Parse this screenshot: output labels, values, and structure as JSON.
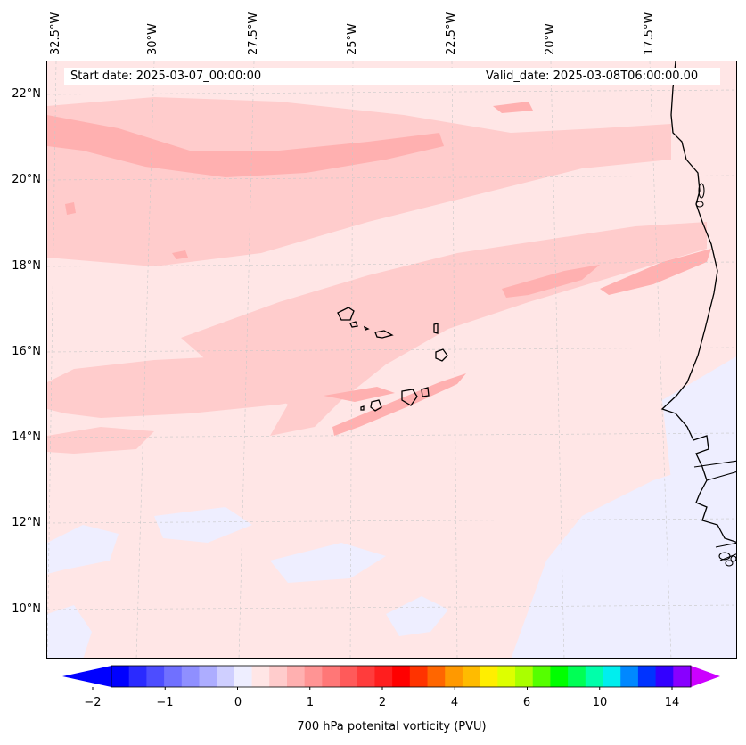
{
  "map": {
    "start_date": "Start date: 2025-03-07_00:00:00",
    "valid_date": "Valid_date: 2025-03-08T06:00:00.00",
    "longitude_labels": [
      "32.5°W",
      "30°W",
      "27.5°W",
      "25°W",
      "22.5°W",
      "20°W",
      "17.5°W"
    ],
    "latitude_labels": [
      "22°N",
      "20°N",
      "18°N",
      "16°N",
      "14°N",
      "12°N",
      "10°N"
    ]
  },
  "colorbar": {
    "label": "700 hPa potenital vorticity (PVU)",
    "ticks": [
      "−2",
      "−1",
      "0",
      "1",
      "2",
      "4",
      "6",
      "10",
      "14"
    ],
    "colors": [
      "#0000ff",
      "#2a2aff",
      "#4d4dff",
      "#7070ff",
      "#8f8fff",
      "#adadff",
      "#cfcfff",
      "#eeeeff",
      "#ffe6e6",
      "#ffcccc",
      "#ffb0b0",
      "#ff9494",
      "#ff7777",
      "#ff5a5a",
      "#ff3c3c",
      "#ff1e1e",
      "#ff0000",
      "#ff3300",
      "#ff6600",
      "#ff9900",
      "#ffbb00",
      "#ffee00",
      "#ddff00",
      "#aaff00",
      "#55ff00",
      "#00ff00",
      "#00ff55",
      "#00ffaa",
      "#00eeee",
      "#0088ff",
      "#0033ff",
      "#3300ff",
      "#8800ff"
    ],
    "under_color": "#0000ff",
    "over_color": "#cc00ff"
  }
}
